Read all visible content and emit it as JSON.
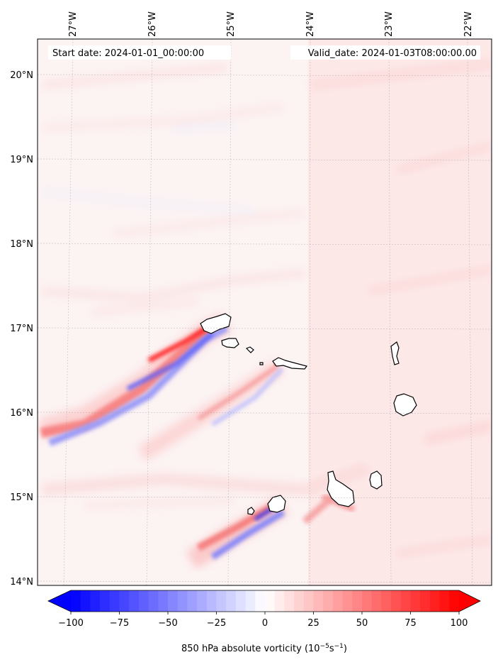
{
  "map": {
    "start_label": "Start date: 2024-01-01_00:00:00",
    "valid_label": "Valid_date: 2024-01-03T08:00:00.00",
    "lon_labels": [
      "27°W",
      "26°W",
      "25°W",
      "24°W",
      "23°W",
      "22°W"
    ],
    "lat_labels": [
      "20°N",
      "19°N",
      "18°N",
      "17°N",
      "16°N",
      "15°N",
      "14°N"
    ],
    "islands": [
      "Santo Antão",
      "São Vicente",
      "Santa Luzia",
      "São Nicolau",
      "Sal",
      "Boa Vista",
      "Maio",
      "Santiago",
      "Fogo",
      "Brava"
    ]
  },
  "colorbar": {
    "ticks": [
      "−100",
      "−75",
      "−50",
      "−25",
      "0",
      "25",
      "50",
      "75",
      "100"
    ],
    "tick_values": [
      -100,
      -75,
      -50,
      -25,
      0,
      25,
      50,
      75,
      100
    ],
    "label_main": "850 hPa absolute vorticity (10",
    "label_exp1": "−5",
    "label_mid": "s",
    "label_exp2": "−1",
    "label_end": ")",
    "min_color": "#0000ff",
    "mid_color": "#ffffff",
    "max_color": "#ff0000"
  }
}
